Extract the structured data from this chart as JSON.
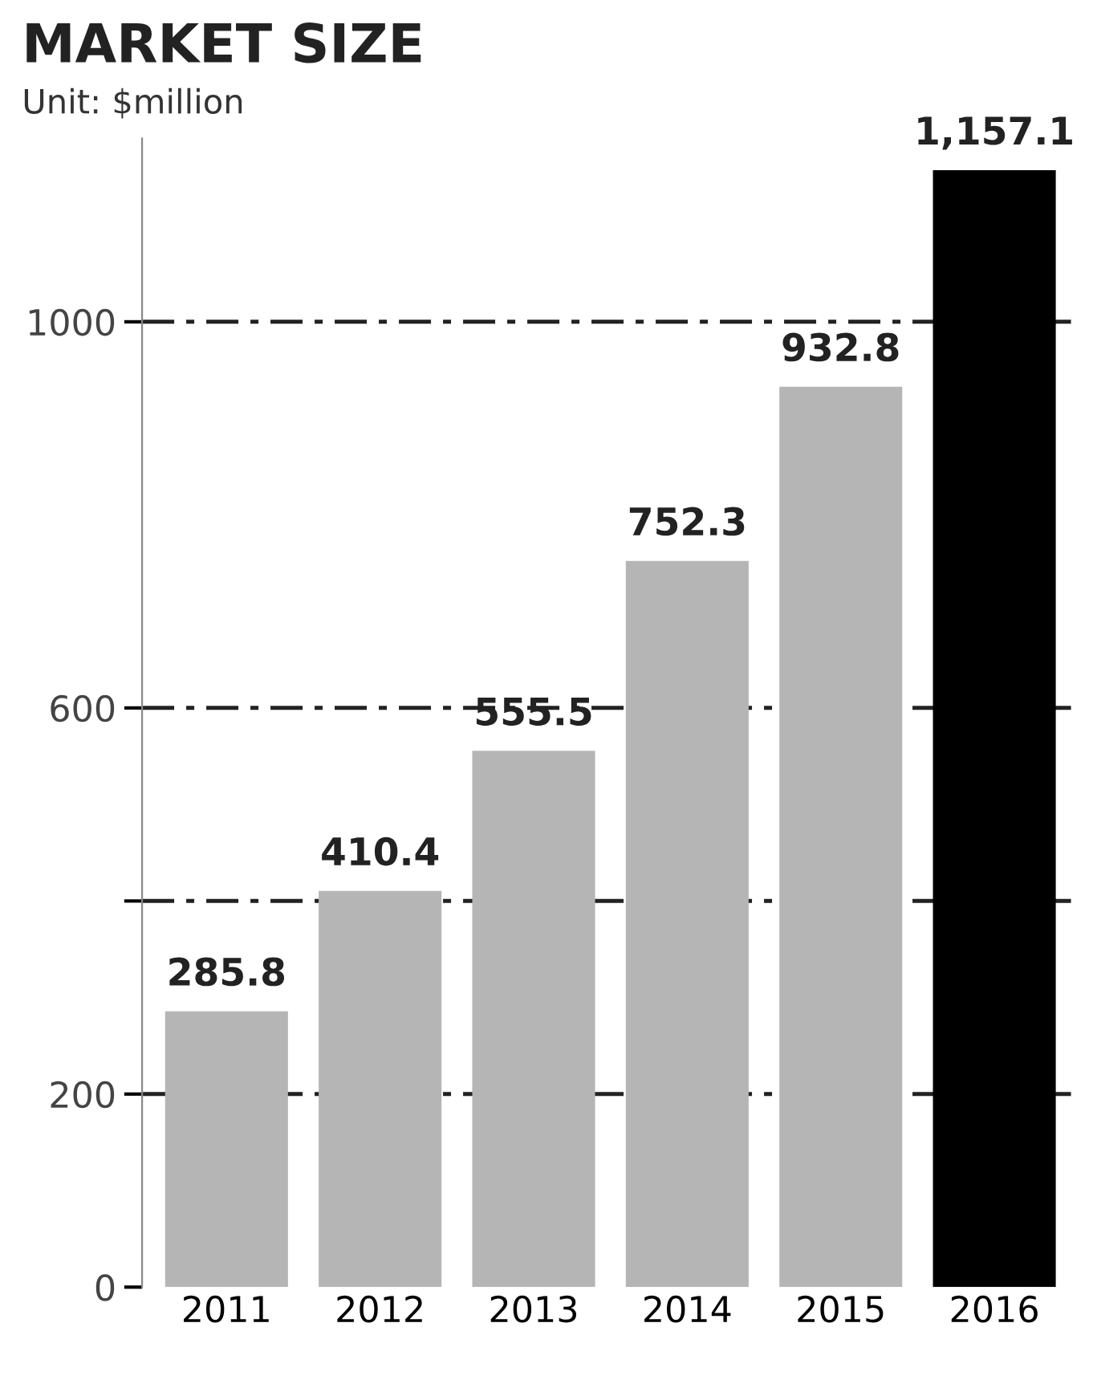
{
  "chart_data": {
    "type": "bar",
    "title": "MARKET SIZE",
    "subtitle": "Unit: $million",
    "categories": [
      "2011",
      "2012",
      "2013",
      "2014",
      "2015",
      "2016"
    ],
    "values": [
      285.8,
      410.4,
      555.5,
      752.3,
      932.8,
      1157.1
    ],
    "colors": [
      "#b5b5b5",
      "#b5b5b5",
      "#b5b5b5",
      "#b5b5b5",
      "#b5b5b5",
      "#000000"
    ],
    "value_labels": [
      "285.8",
      "410.4",
      "555.5",
      "752.3",
      "932.8",
      "1,157.1"
    ],
    "ylim": [
      0,
      1190
    ],
    "yticks": [
      0,
      200,
      {
        "value": 400,
        "label": null
      },
      600,
      1000
    ],
    "ref_lines": [
      {
        "axis": "y",
        "value": 200,
        "line_style": "dashed",
        "color": "#222222"
      },
      {
        "axis": "y",
        "value": 400,
        "line_style": "dashed",
        "color": "#222222"
      },
      {
        "axis": "y",
        "value": 600,
        "line_style": "dashed",
        "color": "#222222"
      },
      {
        "axis": "y",
        "value": 1000,
        "line_style": "dashed",
        "color": "#222222"
      }
    ],
    "grid": false,
    "legend": false
  }
}
